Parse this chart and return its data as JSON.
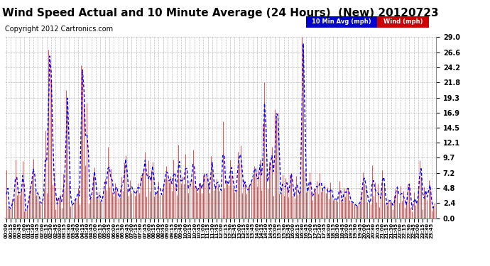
{
  "title": "Wind Speed Actual and 10 Minute Average (24 Hours)  (New) 20120723",
  "copyright": "Copyright 2012 Cartronics.com",
  "yticks": [
    0.0,
    2.4,
    4.8,
    7.2,
    9.7,
    12.1,
    14.5,
    16.9,
    19.3,
    21.8,
    24.2,
    26.6,
    29.0
  ],
  "ymax": 29.0,
  "ymin": 0.0,
  "bg_color": "#ffffff",
  "plot_bg_color": "#ffffff",
  "grid_color": "#aaaaaa",
  "wind_color": "#ff0000",
  "avg_color": "#0000ff",
  "legend_avg_bg": "#0000cc",
  "legend_wind_bg": "#cc0000",
  "title_fontsize": 11,
  "copyright_fontsize": 7,
  "num_points": 288,
  "x_label_step": 3,
  "bar_linewidth": 0.5
}
